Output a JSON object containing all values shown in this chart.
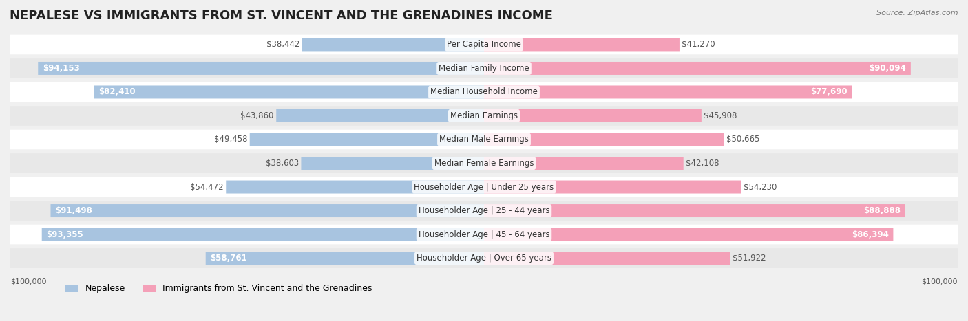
{
  "title": "NEPALESE VS IMMIGRANTS FROM ST. VINCENT AND THE GRENADINES INCOME",
  "source": "Source: ZipAtlas.com",
  "categories": [
    "Per Capita Income",
    "Median Family Income",
    "Median Household Income",
    "Median Earnings",
    "Median Male Earnings",
    "Median Female Earnings",
    "Householder Age | Under 25 years",
    "Householder Age | 25 - 44 years",
    "Householder Age | 45 - 64 years",
    "Householder Age | Over 65 years"
  ],
  "left_values": [
    38442,
    94153,
    82410,
    43860,
    49458,
    38603,
    54472,
    91498,
    93355,
    58761
  ],
  "right_values": [
    41270,
    90094,
    77690,
    45908,
    50665,
    42108,
    54230,
    88888,
    86394,
    51922
  ],
  "left_labels": [
    "$38,442",
    "$94,153",
    "$82,410",
    "$43,860",
    "$49,458",
    "$38,603",
    "$54,472",
    "$91,498",
    "$93,355",
    "$58,761"
  ],
  "right_labels": [
    "$41,270",
    "$90,094",
    "$77,690",
    "$45,908",
    "$50,665",
    "$42,108",
    "$54,230",
    "$88,888",
    "$86,394",
    "$51,922"
  ],
  "max_value": 100000,
  "left_color": "#a8c4e0",
  "right_color": "#f4a0b8",
  "left_color_dark": "#7bafd4",
  "right_color_dark": "#f07090",
  "legend_left": "Nepalese",
  "legend_right": "Immigrants from St. Vincent and the Grenadines",
  "background_color": "#f0f0f0",
  "row_bg_odd": "#ffffff",
  "row_bg_even": "#e8e8e8",
  "title_fontsize": 13,
  "label_fontsize": 8.5,
  "category_fontsize": 8.5
}
